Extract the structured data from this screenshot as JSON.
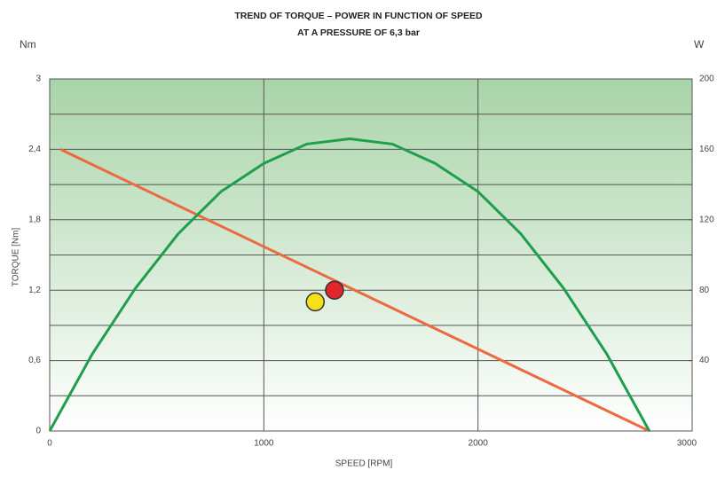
{
  "chart_data": {
    "type": "line",
    "title": "TREND OF TORQUE – POWER IN FUNCTION OF SPEED",
    "subtitle": "AT A PRESSURE OF 6,3 bar",
    "y_unit": "Nm",
    "y2_unit": "W",
    "ylabel": "TORQUE [Nm]",
    "xlabel": "SPEED [RPM]",
    "xlim": [
      0,
      3000
    ],
    "xticks": [
      0,
      1000,
      2000,
      3000
    ],
    "ylim": [
      0,
      3
    ],
    "yticks": [
      0,
      {
        "value": 0.6,
        "label": "0,6"
      },
      {
        "value": 1.2,
        "label": "1,2"
      },
      {
        "value": 1.8,
        "label": "1,8"
      },
      {
        "value": 2.4,
        "label": "2,4"
      },
      3
    ],
    "yminor": [
      0.3,
      0.9,
      1.5,
      2.1,
      2.7
    ],
    "y2lim": [
      0,
      200
    ],
    "y2ticks": [
      40,
      80,
      120,
      160,
      200
    ],
    "grid": true,
    "series": [
      {
        "color": "#ec6a3f",
        "x": [
          50,
          2800
        ],
        "values": [
          2.4,
          0
        ]
      },
      {
        "color": "#1f9e4b",
        "axis": "y2",
        "x": [
          0,
          200,
          400,
          600,
          800,
          1000,
          1200,
          1400,
          1600,
          1800,
          2000,
          2200,
          2400,
          2600,
          2800
        ],
        "values": [
          0,
          44,
          81,
          112,
          136,
          152,
          163,
          166,
          163,
          152,
          136,
          112,
          81,
          44,
          0
        ]
      }
    ],
    "points": [
      {
        "x": 1240,
        "y": 1.1,
        "color": "#f4e11c"
      },
      {
        "x": 1330,
        "y": 1.2,
        "color": "#e0262a"
      }
    ]
  }
}
